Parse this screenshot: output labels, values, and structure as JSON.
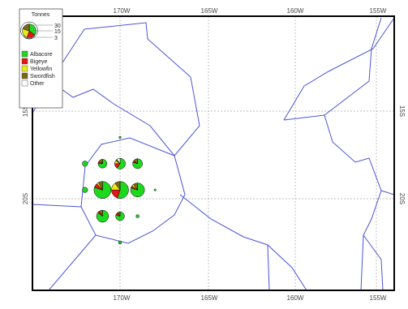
{
  "map": {
    "longitude_ticks": [
      "170W",
      "165W",
      "160W",
      "155W"
    ],
    "latitude_ticks": [
      "15S",
      "20S"
    ],
    "grid": true,
    "boundary_color": "#4a55d6"
  },
  "legend": {
    "title": "Tonnes",
    "placement": "top-left",
    "size_labels": [
      "30",
      "15",
      "3"
    ],
    "size_values": [
      30,
      15,
      3
    ],
    "species": [
      {
        "label": "Albacore",
        "color": "#1ed81e"
      },
      {
        "label": "Bigeye",
        "color": "#e81414"
      },
      {
        "label": "Yellowfin",
        "color": "#e8e81e"
      },
      {
        "label": "Swordfish",
        "color": "#7a6a14"
      },
      {
        "label": "Other",
        "color": "#ffffff"
      }
    ]
  },
  "chart_data": {
    "type": "pie-map",
    "unit": "Tonnes",
    "species_order": [
      "Albacore",
      "Bigeye",
      "Yellowfin",
      "Swordfish",
      "Other"
    ],
    "points": [
      {
        "lon": -170.0,
        "lat": -16.5,
        "total": 0.5,
        "shares": [
          1.0,
          0,
          0,
          0,
          0
        ]
      },
      {
        "lon": -172.0,
        "lat": -18.0,
        "total": 3,
        "shares": [
          1.0,
          0,
          0,
          0,
          0
        ]
      },
      {
        "lon": -171.0,
        "lat": -18.0,
        "total": 8,
        "shares": [
          0.75,
          0.1,
          0.05,
          0.1,
          0
        ]
      },
      {
        "lon": -170.0,
        "lat": -18.0,
        "total": 12,
        "shares": [
          0.6,
          0.15,
          0.1,
          0.05,
          0.1
        ]
      },
      {
        "lon": -169.0,
        "lat": -18.0,
        "total": 10,
        "shares": [
          0.8,
          0.05,
          0,
          0.15,
          0
        ]
      },
      {
        "lon": -172.0,
        "lat": -19.5,
        "total": 3,
        "shares": [
          1.0,
          0,
          0,
          0,
          0
        ]
      },
      {
        "lon": -171.0,
        "lat": -19.5,
        "total": 30,
        "shares": [
          0.8,
          0.08,
          0.04,
          0.08,
          0
        ]
      },
      {
        "lon": -170.0,
        "lat": -19.5,
        "total": 30,
        "shares": [
          0.55,
          0.2,
          0.15,
          0.1,
          0
        ]
      },
      {
        "lon": -169.0,
        "lat": -19.5,
        "total": 20,
        "shares": [
          0.8,
          0.05,
          0.05,
          0.1,
          0
        ]
      },
      {
        "lon": -168.0,
        "lat": -19.5,
        "total": 0.3,
        "shares": [
          1.0,
          0,
          0,
          0,
          0
        ]
      },
      {
        "lon": -171.0,
        "lat": -21.0,
        "total": 15,
        "shares": [
          0.85,
          0.05,
          0,
          0.1,
          0
        ]
      },
      {
        "lon": -170.0,
        "lat": -21.0,
        "total": 8,
        "shares": [
          0.8,
          0.1,
          0,
          0.1,
          0
        ]
      },
      {
        "lon": -169.0,
        "lat": -21.0,
        "total": 1,
        "shares": [
          1.0,
          0,
          0,
          0,
          0
        ]
      },
      {
        "lon": -170.0,
        "lat": -22.5,
        "total": 1,
        "shares": [
          1.0,
          0,
          0,
          0,
          0
        ]
      }
    ]
  }
}
